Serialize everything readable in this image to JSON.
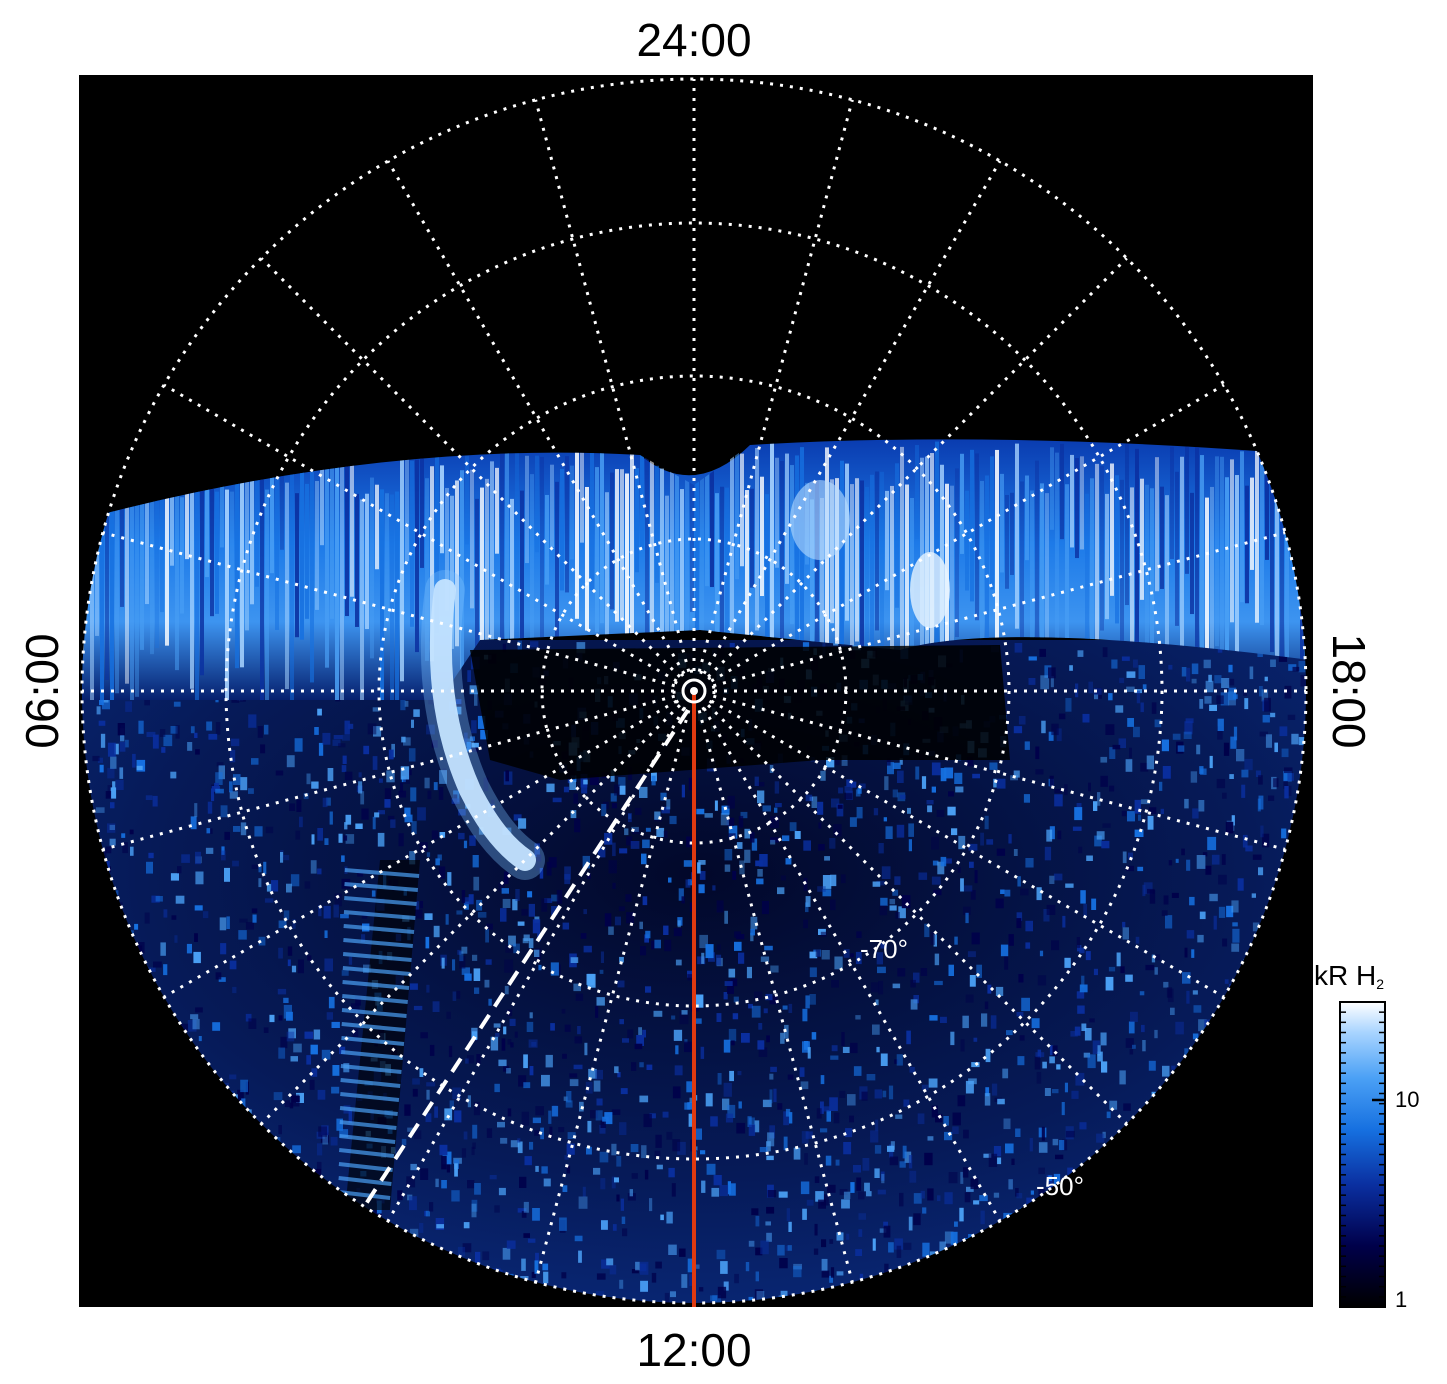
{
  "figure": {
    "local_time_labels": {
      "top": "24:00",
      "bottom": "12:00",
      "left": "06:00",
      "right": "18:00"
    },
    "latitude_labels": {
      "inner": "-70°",
      "outer": "-50°"
    },
    "colorbar": {
      "title_main": "kR H",
      "title_subscript": "2",
      "ticks": [
        "10",
        "1"
      ],
      "scale": "log",
      "range_kR": [
        1,
        30
      ],
      "colors": [
        "#000000",
        "#00004a",
        "#0a2fa0",
        "#1670e0",
        "#4aa0f5",
        "#a8d4ff",
        "#ffffff"
      ]
    },
    "overlay_colors": {
      "grid": "#ffffff",
      "noon_meridian": "#e03a10",
      "dashed_line": "#ffffff",
      "background": "#000000"
    },
    "grid_style": "dotted",
    "projection": "polar, south pole centered"
  }
}
